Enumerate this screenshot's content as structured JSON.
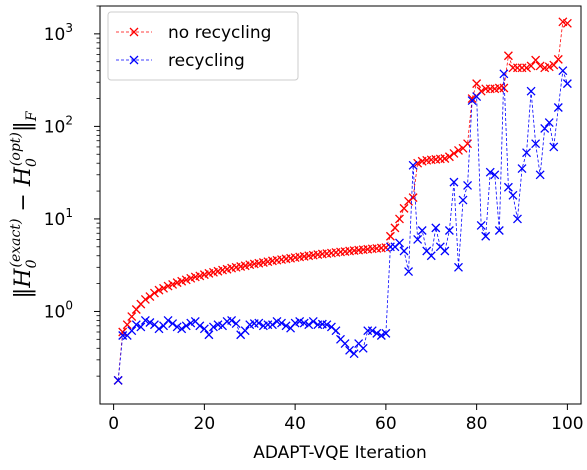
{
  "chart_data": {
    "type": "line",
    "xlabel": "ADAPT-VQE Iteration",
    "ylabel": {
      "norm_open": "‖",
      "h1": "H",
      "sub1": "0",
      "sup1": "(exact)",
      "minus": " − ",
      "h2": "H",
      "sub2": "0",
      "sup2": "(opt)",
      "norm_close": "‖",
      "subF": "F"
    },
    "xlim": [
      -3,
      103
    ],
    "ylim": [
      0.1,
      2000
    ],
    "yscale": "log",
    "xticks": [
      0,
      20,
      40,
      60,
      80,
      100
    ],
    "xtick_labels": [
      "0",
      "20",
      "40",
      "60",
      "80",
      "100"
    ],
    "yticks": [
      1,
      10,
      100,
      1000
    ],
    "ytick_labels": [
      {
        "base": "10",
        "exp": "0"
      },
      {
        "base": "10",
        "exp": "1"
      },
      {
        "base": "10",
        "exp": "2"
      },
      {
        "base": "10",
        "exp": "3"
      }
    ],
    "legend_position": "top-left",
    "series": [
      {
        "name": "no recycling",
        "color": "#ff0000",
        "marker": "x",
        "linestyle": "dashed",
        "x": [
          1,
          2,
          3,
          4,
          5,
          6,
          7,
          8,
          9,
          10,
          11,
          12,
          13,
          14,
          15,
          16,
          17,
          18,
          19,
          20,
          21,
          22,
          23,
          24,
          25,
          26,
          27,
          28,
          29,
          30,
          31,
          32,
          33,
          34,
          35,
          36,
          37,
          38,
          39,
          40,
          41,
          42,
          43,
          44,
          45,
          46,
          47,
          48,
          49,
          50,
          51,
          52,
          53,
          54,
          55,
          56,
          57,
          58,
          59,
          60,
          61,
          62,
          63,
          64,
          65,
          66,
          67,
          68,
          69,
          70,
          71,
          72,
          73,
          74,
          75,
          76,
          77,
          78,
          79,
          80,
          81,
          82,
          83,
          84,
          85,
          86,
          87,
          88,
          89,
          90,
          91,
          92,
          93,
          94,
          95,
          96,
          97,
          98,
          99,
          100
        ],
        "values": [
          0.18,
          0.6,
          0.72,
          0.88,
          1.05,
          1.2,
          1.35,
          1.45,
          1.58,
          1.7,
          1.78,
          1.88,
          1.96,
          2.05,
          2.12,
          2.2,
          2.28,
          2.36,
          2.42,
          2.5,
          2.58,
          2.65,
          2.72,
          2.8,
          2.86,
          2.94,
          3.0,
          3.06,
          3.12,
          3.2,
          3.26,
          3.32,
          3.38,
          3.45,
          3.52,
          3.58,
          3.64,
          3.7,
          3.76,
          3.82,
          3.88,
          3.94,
          4.0,
          4.06,
          4.12,
          4.18,
          4.22,
          4.28,
          4.34,
          4.4,
          4.44,
          4.5,
          4.55,
          4.6,
          4.65,
          4.7,
          4.75,
          4.8,
          4.85,
          4.9,
          6.5,
          8.0,
          10.0,
          13.0,
          15.5,
          17.0,
          40.0,
          42.0,
          43.0,
          43.5,
          44.0,
          44.5,
          45.0,
          47.0,
          51.0,
          55.0,
          58.0,
          65.0,
          200.0,
          290.0,
          240.0,
          255.0,
          255.0,
          255.0,
          260.0,
          260.0,
          580.0,
          430.0,
          430.0,
          430.0,
          430.0,
          450.0,
          520.0,
          450.0,
          430.0,
          440.0,
          460.0,
          530.0,
          1350.0,
          1300.0
        ]
      },
      {
        "name": "recycling",
        "color": "#0000ff",
        "marker": "x",
        "linestyle": "dashed",
        "x": [
          1,
          2,
          3,
          4,
          5,
          6,
          7,
          8,
          9,
          10,
          11,
          12,
          13,
          14,
          15,
          16,
          17,
          18,
          19,
          20,
          21,
          22,
          23,
          24,
          25,
          26,
          27,
          28,
          29,
          30,
          31,
          32,
          33,
          34,
          35,
          36,
          37,
          38,
          39,
          40,
          41,
          42,
          43,
          44,
          45,
          46,
          47,
          48,
          49,
          50,
          51,
          52,
          53,
          54,
          55,
          56,
          57,
          58,
          59,
          60,
          61,
          62,
          63,
          64,
          65,
          66,
          67,
          68,
          69,
          70,
          71,
          72,
          73,
          74,
          75,
          76,
          77,
          78,
          79,
          80,
          81,
          82,
          83,
          84,
          85,
          86,
          87,
          88,
          89,
          90,
          91,
          92,
          93,
          94,
          95,
          96,
          97,
          98,
          99,
          100
        ],
        "values": [
          0.18,
          0.55,
          0.55,
          0.62,
          0.72,
          0.68,
          0.8,
          0.76,
          0.72,
          0.65,
          0.7,
          0.8,
          0.74,
          0.68,
          0.65,
          0.7,
          0.75,
          0.78,
          0.7,
          0.65,
          0.56,
          0.68,
          0.72,
          0.7,
          0.78,
          0.8,
          0.74,
          0.56,
          0.62,
          0.72,
          0.74,
          0.75,
          0.7,
          0.72,
          0.72,
          0.78,
          0.75,
          0.7,
          0.66,
          0.75,
          0.78,
          0.75,
          0.72,
          0.78,
          0.72,
          0.73,
          0.72,
          0.68,
          0.62,
          0.5,
          0.45,
          0.38,
          0.35,
          0.45,
          0.4,
          0.62,
          0.62,
          0.58,
          0.55,
          0.58,
          5.0,
          5.0,
          5.5,
          4.5,
          2.7,
          38.0,
          6.0,
          7.5,
          4.5,
          4.0,
          8.0,
          5.0,
          4.5,
          7.5,
          25.0,
          3.0,
          16.0,
          23.0,
          190.0,
          210.0,
          8.5,
          6.5,
          32.0,
          30.0,
          7.5,
          370.0,
          22.0,
          18.0,
          10.0,
          35.0,
          52.0,
          240.0,
          65.0,
          30.0,
          95.0,
          110.0,
          60.0,
          160.0,
          400.0,
          290.0
        ]
      }
    ]
  }
}
